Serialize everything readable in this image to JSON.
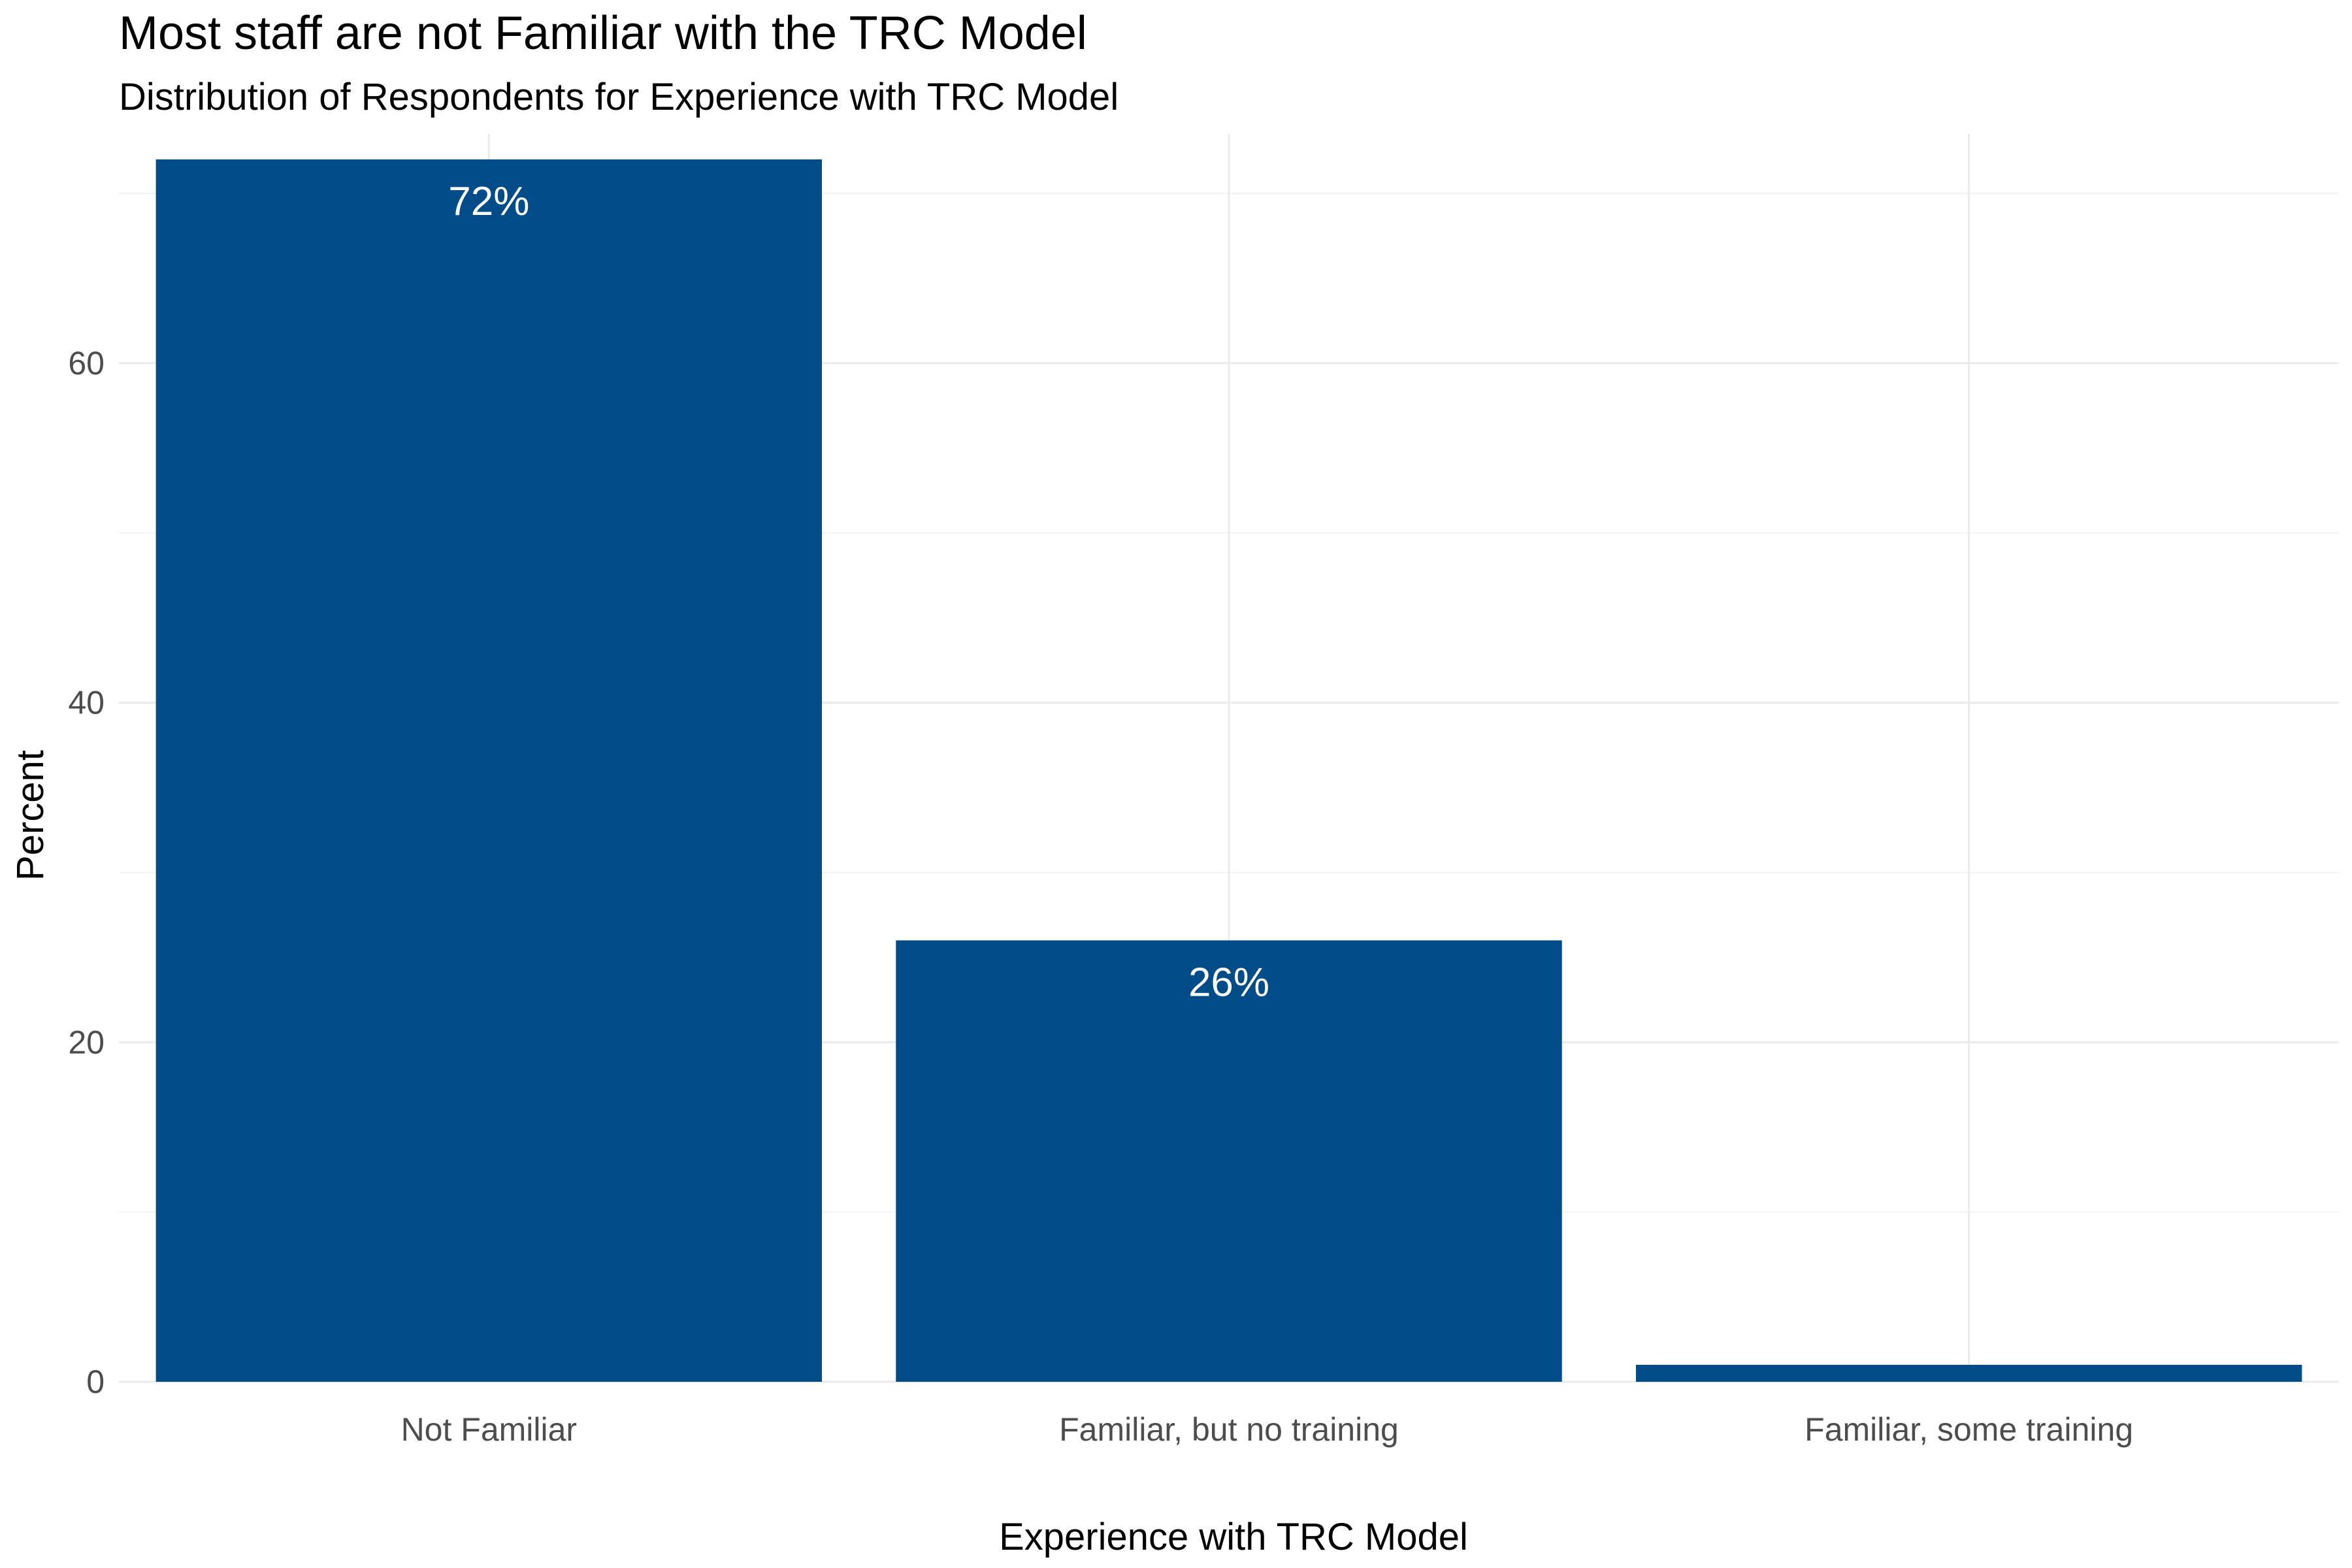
{
  "chart_data": {
    "type": "bar",
    "title": "Most staff are not Familiar with the TRC Model",
    "subtitle": "Distribution of Respondents for Experience with TRC Model",
    "xlabel": "Experience with TRC Model",
    "ylabel": "Percent",
    "categories": [
      "Not Familiar",
      "Familiar, but no training",
      "Familiar, some training"
    ],
    "values": [
      72,
      26,
      1
    ],
    "data_labels": [
      "72%",
      "26%",
      ""
    ],
    "ylim": [
      0,
      73.5
    ],
    "yticks": [
      0,
      20,
      40,
      60
    ],
    "ytick_labels": [
      "0",
      "20",
      "40",
      "60"
    ],
    "y_minor_ticks": [
      10,
      30,
      50,
      70
    ],
    "grid": true,
    "bar_color": "#004c88",
    "grid_color": "#ebebeb"
  }
}
